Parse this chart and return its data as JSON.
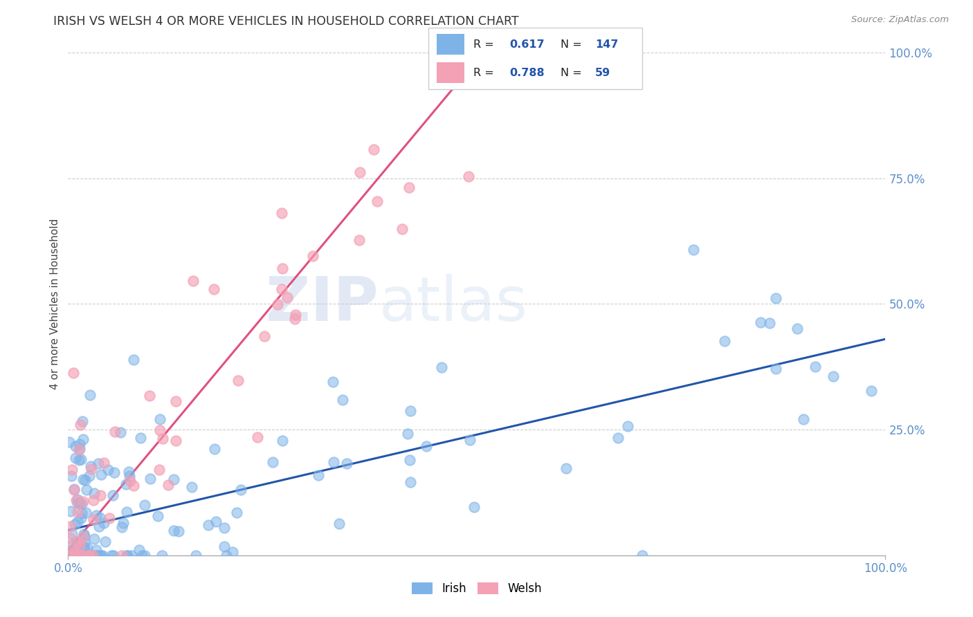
{
  "title": "IRISH VS WELSH 4 OR MORE VEHICLES IN HOUSEHOLD CORRELATION CHART",
  "source": "Source: ZipAtlas.com",
  "ylabel": "4 or more Vehicles in Household",
  "irish_R": 0.617,
  "irish_N": 147,
  "welsh_R": 0.788,
  "welsh_N": 59,
  "irish_color": "#7EB3E8",
  "welsh_color": "#F4A0B5",
  "irish_line_color": "#2255AA",
  "welsh_line_color": "#E05080",
  "background_color": "#FFFFFF",
  "watermark_zip": "ZIP",
  "watermark_atlas": "atlas",
  "grid_color": "#CCCCCC",
  "tick_color": "#5B8FC9",
  "title_color": "#333333",
  "source_color": "#888888",
  "ylabel_color": "#444444",
  "legend_r_color": "#2255AA",
  "legend_n_color": "#2255AA"
}
